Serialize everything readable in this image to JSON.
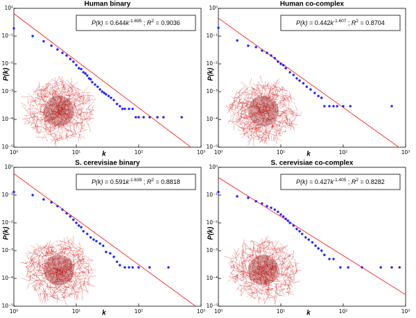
{
  "chart_data": [
    {
      "type": "scatter",
      "title": "Human binary",
      "xlabel": "k",
      "ylabel": "P(k)",
      "xscale": "log",
      "yscale": "log",
      "color": "#1f1fff",
      "fit_color": "#ff2020",
      "x": [
        1,
        2,
        3,
        4,
        5,
        6,
        7,
        8,
        9,
        10,
        11,
        12,
        13,
        14,
        15,
        16,
        17,
        18,
        20,
        22,
        24,
        26,
        28,
        30,
        33,
        36,
        40,
        45,
        50,
        55,
        60,
        70,
        80,
        90,
        100,
        120,
        150,
        200,
        250,
        490
      ],
      "y": [
        0.19,
        0.1,
        0.065,
        0.045,
        0.033,
        0.025,
        0.02,
        0.015,
        0.012,
        0.009,
        0.007,
        0.0065,
        0.005,
        0.0045,
        0.0038,
        0.003,
        0.0028,
        0.0022,
        0.0018,
        0.0015,
        0.0012,
        0.001,
        0.0009,
        0.0008,
        0.0007,
        0.0006,
        0.0005,
        0.00036,
        0.0003,
        0.00024,
        0.00024,
        0.00024,
        0.00024,
        0.00012,
        0.00012,
        0.00012,
        0.00012,
        0.00012,
        0.00012,
        0.00012
      ],
      "fit": {
        "coefficient": 0.644,
        "exponent": -1.695,
        "r2": 0.9036
      },
      "annotation": [
        "P(k)",
        " = 0.644",
        "k",
        "-1.695",
        " ; ",
        "R",
        "2",
        " = 0.9036"
      ],
      "xlim": [
        1,
        1000
      ],
      "ylim": [
        1e-05,
        1
      ],
      "xticks": [
        {
          "value": 1,
          "label": "10⁰"
        },
        {
          "value": 10,
          "label": "10¹"
        },
        {
          "value": 100,
          "label": "10²"
        },
        {
          "value": 1000,
          "label": "10³"
        }
      ],
      "yticks": [
        {
          "value": 1,
          "label": "10⁰"
        },
        {
          "value": 0.1,
          "label": "10⁻¹"
        },
        {
          "value": 0.01,
          "label": "10⁻²"
        },
        {
          "value": 0.001,
          "label": "10⁻³"
        },
        {
          "value": 0.0001,
          "label": "10⁻⁴"
        },
        {
          "value": 1e-05,
          "label": "10⁻⁵"
        }
      ]
    },
    {
      "type": "scatter",
      "title": "Human co-complex",
      "xlabel": "k",
      "ylabel": "P(k)",
      "xscale": "log",
      "yscale": "log",
      "color": "#1f1fff",
      "fit_color": "#ff2020",
      "x": [
        1,
        2,
        3,
        4,
        5,
        6,
        7,
        8,
        9,
        10,
        11,
        12,
        14,
        16,
        18,
        20,
        23,
        26,
        30,
        35,
        40,
        45,
        50,
        60,
        70,
        80,
        100,
        130,
        600
      ],
      "y": [
        0.2,
        0.07,
        0.045,
        0.04,
        0.03,
        0.025,
        0.02,
        0.016,
        0.012,
        0.01,
        0.009,
        0.007,
        0.005,
        0.004,
        0.003,
        0.0025,
        0.002,
        0.0015,
        0.0012,
        0.0009,
        0.0007,
        0.0006,
        0.0003,
        0.0003,
        0.0003,
        0.0003,
        0.0003,
        0.0003,
        0.0003
      ],
      "fit": {
        "coefficient": 0.442,
        "exponent": -1.607,
        "r2": 0.8704
      },
      "annotation": [
        "P(k)",
        " = 0.442",
        "k",
        "-1.607",
        " ; ",
        "R",
        "2",
        " = 0.8704"
      ],
      "xlim": [
        1,
        1000
      ],
      "ylim": [
        1e-05,
        1
      ],
      "xticks": [
        {
          "value": 1,
          "label": "10⁰"
        },
        {
          "value": 10,
          "label": "10¹"
        },
        {
          "value": 100,
          "label": "10²"
        },
        {
          "value": 1000,
          "label": "10³"
        }
      ],
      "yticks": [
        {
          "value": 1,
          "label": "10⁰"
        },
        {
          "value": 0.1,
          "label": "10⁻¹"
        },
        {
          "value": 0.01,
          "label": "10⁻²"
        },
        {
          "value": 0.001,
          "label": "10⁻³"
        },
        {
          "value": 0.0001,
          "label": "10⁻⁴"
        },
        {
          "value": 1e-05,
          "label": "10⁻⁵"
        }
      ]
    },
    {
      "type": "scatter",
      "title": "S. cerevisiae binary",
      "xlabel": "k",
      "ylabel": "P(k)",
      "xscale": "log",
      "yscale": "log",
      "color": "#1f1fff",
      "fit_color": "#ff2020",
      "x": [
        1,
        2,
        3,
        4,
        5,
        6,
        7,
        8,
        9,
        10,
        11,
        12,
        13,
        15,
        17,
        19,
        21,
        24,
        27,
        30,
        35,
        40,
        45,
        50,
        60,
        70,
        80,
        100,
        150,
        300
      ],
      "y": [
        0.13,
        0.1,
        0.07,
        0.055,
        0.04,
        0.03,
        0.022,
        0.017,
        0.013,
        0.01,
        0.008,
        0.007,
        0.005,
        0.004,
        0.003,
        0.0025,
        0.0022,
        0.0018,
        0.0015,
        0.0009,
        0.0008,
        0.0006,
        0.0004,
        0.0003,
        0.00025,
        0.00025,
        0.00025,
        0.00025,
        0.00025,
        0.00025
      ],
      "fit": {
        "coefficient": 0.591,
        "exponent": -1.639,
        "r2": 0.8818
      },
      "annotation": [
        "P(k)",
        " = 0.591",
        "k",
        "-1.639",
        " ; ",
        "R",
        "2",
        " = 0.8818"
      ],
      "xlim": [
        1,
        1000
      ],
      "ylim": [
        1e-05,
        1
      ],
      "xticks": [
        {
          "value": 1,
          "label": "10⁰"
        },
        {
          "value": 10,
          "label": "10¹"
        },
        {
          "value": 100,
          "label": "10²"
        },
        {
          "value": 1000,
          "label": "10³"
        }
      ],
      "yticks": [
        {
          "value": 1,
          "label": "10⁰"
        },
        {
          "value": 0.1,
          "label": "10⁻¹"
        },
        {
          "value": 0.01,
          "label": "10⁻²"
        },
        {
          "value": 0.001,
          "label": "10⁻³"
        },
        {
          "value": 0.0001,
          "label": "10⁻⁴"
        },
        {
          "value": 1e-05,
          "label": "10⁻⁵"
        }
      ]
    },
    {
      "type": "scatter",
      "title": "S. cerevisiae co-complex",
      "xlabel": "k",
      "ylabel": "P(k)",
      "xscale": "log",
      "yscale": "log",
      "color": "#1f1fff",
      "fit_color": "#ff2020",
      "x": [
        1,
        2,
        3,
        4,
        5,
        6,
        7,
        8,
        9,
        10,
        11,
        12,
        13,
        14,
        16,
        18,
        20,
        22,
        25,
        28,
        32,
        36,
        40,
        45,
        50,
        60,
        70,
        90,
        120,
        200,
        400,
        600,
        800
      ],
      "y": [
        0.13,
        0.09,
        0.08,
        0.06,
        0.05,
        0.04,
        0.035,
        0.03,
        0.025,
        0.02,
        0.017,
        0.014,
        0.012,
        0.01,
        0.008,
        0.006,
        0.005,
        0.004,
        0.003,
        0.0025,
        0.002,
        0.0015,
        0.0012,
        0.001,
        0.0007,
        0.0005,
        0.0005,
        0.00025,
        0.00025,
        0.00025,
        0.00025,
        0.00025,
        0.00025
      ],
      "fit": {
        "coefficient": 0.427,
        "exponent": -1.405,
        "r2": 0.8282
      },
      "annotation": [
        "P(k)",
        " = 0.427",
        "k",
        "-1.405",
        " ; ",
        "R",
        "2",
        " = 0.8282"
      ],
      "xlim": [
        1,
        1000
      ],
      "ylim": [
        1e-05,
        1
      ],
      "xticks": [
        {
          "value": 1,
          "label": "10⁰"
        },
        {
          "value": 10,
          "label": "10¹"
        },
        {
          "value": 100,
          "label": "10²"
        },
        {
          "value": 1000,
          "label": "10³"
        }
      ],
      "yticks": [
        {
          "value": 1,
          "label": "10⁰"
        },
        {
          "value": 0.1,
          "label": "10⁻¹"
        },
        {
          "value": 0.01,
          "label": "10⁻²"
        },
        {
          "value": 0.001,
          "label": "10⁻³"
        },
        {
          "value": 0.0001,
          "label": "10⁻⁴"
        },
        {
          "value": 1e-05,
          "label": "10⁻⁵"
        }
      ]
    }
  ]
}
